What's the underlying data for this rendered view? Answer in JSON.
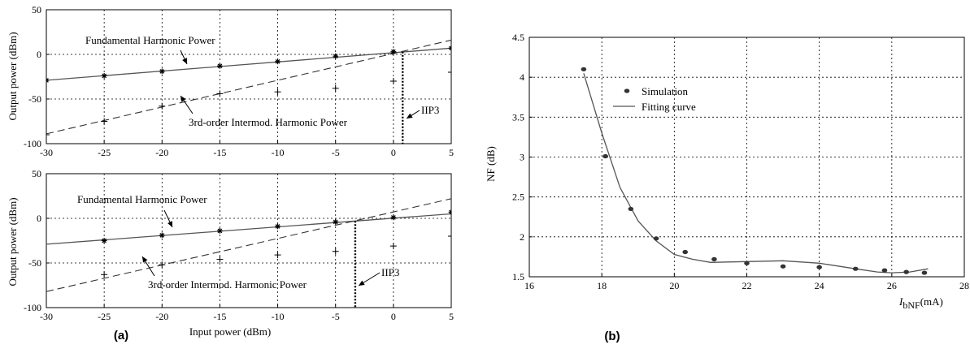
{
  "panels": {
    "a_label": "(a)",
    "b_label": "(b)"
  },
  "chart_data": [
    {
      "type": "line",
      "xlim": [
        -30,
        5
      ],
      "ylim": [
        -100,
        50
      ],
      "xticks": [
        -30,
        -25,
        -20,
        -15,
        -10,
        -5,
        0,
        5
      ],
      "yticks": [
        -100,
        -50,
        0,
        50
      ],
      "grid": true,
      "xlabel": "",
      "ylabel": "Output power (dBm)",
      "series": [
        {
          "name": "Fundamental Harmonic Power",
          "style": "solid-with-stars",
          "line": [
            [
              -30,
              -29
            ],
            [
              5,
              7
            ]
          ],
          "markers": [
            [
              -30,
              -29
            ],
            [
              -25,
              -24
            ],
            [
              -20,
              -19
            ],
            [
              -15,
              -13
            ],
            [
              -10,
              -8
            ],
            [
              -5,
              -2
            ],
            [
              0,
              3
            ],
            [
              5,
              7
            ]
          ]
        },
        {
          "name": "3rd-order Intermod. Harmonic Power",
          "style": "dashed-with-plus",
          "line": [
            [
              -30,
              -89
            ],
            [
              5,
              16
            ]
          ],
          "markers": [
            [
              -30,
              -90
            ],
            [
              -25,
              -75
            ],
            [
              -20,
              -58
            ],
            [
              -15,
              -44
            ],
            [
              -10,
              -42
            ],
            [
              -5,
              -38
            ],
            [
              0,
              -30
            ],
            [
              5,
              -20
            ]
          ]
        }
      ],
      "annotations": [
        {
          "text": "IIP3",
          "x": 0.8
        }
      ]
    },
    {
      "type": "line",
      "xlim": [
        -30,
        5
      ],
      "ylim": [
        -100,
        50
      ],
      "xticks": [
        -30,
        -25,
        -20,
        -15,
        -10,
        -5,
        0,
        5
      ],
      "yticks": [
        -100,
        -50,
        0,
        50
      ],
      "grid": true,
      "xlabel": "Input power (dBm)",
      "ylabel": "Output power (dBm)",
      "series": [
        {
          "name": "Fundamental Harmonic Power",
          "style": "solid-with-stars",
          "line": [
            [
              -30,
              -29
            ],
            [
              5,
              5
            ]
          ],
          "markers": [
            [
              -25,
              -25
            ],
            [
              -20,
              -19
            ],
            [
              -15,
              -14
            ],
            [
              -10,
              -9
            ],
            [
              -5,
              -4
            ],
            [
              0,
              1
            ],
            [
              5,
              7
            ]
          ]
        },
        {
          "name": "3rd-order Intermod. Harmonic Power",
          "style": "dashed-with-plus",
          "line": [
            [
              -30,
              -82
            ],
            [
              5,
              22
            ]
          ],
          "markers": [
            [
              -25,
              -63
            ],
            [
              -20,
              -52
            ],
            [
              -15,
              -46
            ],
            [
              -10,
              -41
            ],
            [
              -5,
              -37
            ],
            [
              0,
              -31
            ],
            [
              5,
              -20
            ]
          ]
        }
      ],
      "annotations": [
        {
          "text": "IIP3",
          "x": -3.3
        }
      ]
    },
    {
      "type": "line",
      "xlim": [
        16,
        28
      ],
      "ylim": [
        1.5,
        4.5
      ],
      "xticks": [
        16,
        18,
        20,
        22,
        24,
        26,
        28
      ],
      "yticks": [
        1.5,
        2,
        2.5,
        3,
        3.5,
        4,
        4.5
      ],
      "ytick_labels": [
        "1.5",
        "2",
        "2.5",
        "3",
        "3.5",
        "4",
        "4.5"
      ],
      "grid": true,
      "xlabel_main": "I",
      "xlabel_sub": "bNF",
      "xlabel_unit": "(mA)",
      "ylabel": "NF (dB)",
      "legend": "top-left",
      "series": [
        {
          "name": "Simulation",
          "style": "markers",
          "x": [
            17.5,
            18.1,
            18.8,
            19.5,
            20.3,
            21.1,
            22.0,
            23.0,
            24.0,
            25.0,
            25.8,
            26.4,
            26.9
          ],
          "y": [
            4.1,
            3.01,
            2.35,
            1.98,
            1.81,
            1.72,
            1.67,
            1.63,
            1.62,
            1.6,
            1.58,
            1.56,
            1.55
          ]
        },
        {
          "name": "Fitting curve",
          "style": "solid",
          "x": [
            17.5,
            18.0,
            18.5,
            19.0,
            19.5,
            20.0,
            20.5,
            21.0,
            22.0,
            23.0,
            24.0,
            25.0,
            25.6,
            26.0,
            26.5,
            27.0
          ],
          "y": [
            4.05,
            3.3,
            2.62,
            2.2,
            1.95,
            1.78,
            1.72,
            1.68,
            1.69,
            1.7,
            1.67,
            1.6,
            1.56,
            1.55,
            1.56,
            1.6
          ]
        }
      ]
    }
  ]
}
